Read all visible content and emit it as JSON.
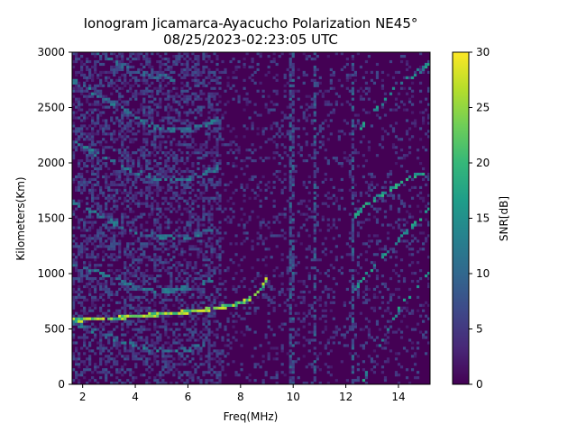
{
  "chart_data": {
    "type": "heatmap",
    "title": [
      "Ionogram Jicamarca-Ayacucho Polarization NE45°",
      "08/25/2023-02:23:05 UTC"
    ],
    "xlabel": "Freq(MHz)",
    "ylabel": "Kilometers(Km)",
    "xlim": [
      1.6,
      15.2
    ],
    "ylim": [
      0,
      3000
    ],
    "xticks": [
      2,
      4,
      6,
      8,
      10,
      12,
      14
    ],
    "yticks": [
      0,
      500,
      1000,
      1500,
      2000,
      2500,
      3000
    ],
    "colormap": "viridis",
    "colorbar": {
      "label": "SNR[dB]",
      "range": [
        0,
        30
      ],
      "ticks": [
        0,
        5,
        10,
        15,
        20,
        25,
        30
      ],
      "colors": [
        "#440154",
        "#482878",
        "#3e4989",
        "#31688e",
        "#26828e",
        "#1f9e89",
        "#35b779",
        "#6ece58",
        "#b5de2b",
        "#fde725"
      ]
    },
    "background_snr_db": 1,
    "traces": [
      {
        "kind": "main_echo",
        "snr_db": 29,
        "points": [
          [
            1.6,
            580
          ],
          [
            3,
            595
          ],
          [
            4.5,
            625
          ],
          [
            6,
            655
          ],
          [
            7,
            685
          ],
          [
            7.5,
            705
          ],
          [
            8,
            735
          ],
          [
            8.5,
            790
          ],
          [
            8.8,
            860
          ],
          [
            9.0,
            960
          ]
        ]
      },
      {
        "kind": "lower_echo",
        "snr_db": 14,
        "points": [
          [
            1.6,
            560
          ],
          [
            2.5,
            480
          ],
          [
            3.5,
            390
          ],
          [
            4.5,
            320
          ],
          [
            5.2,
            300
          ],
          [
            6,
            310
          ],
          [
            7,
            390
          ]
        ]
      },
      {
        "kind": "multi_hop_2",
        "snr_db": 14,
        "points": [
          [
            1.6,
            1100
          ],
          [
            3,
            980
          ],
          [
            4,
            880
          ],
          [
            5,
            840
          ],
          [
            6,
            870
          ],
          [
            7,
            960
          ]
        ]
      },
      {
        "kind": "multi_hop_3",
        "snr_db": 14,
        "points": [
          [
            1.6,
            1650
          ],
          [
            3,
            1480
          ],
          [
            4,
            1380
          ],
          [
            5,
            1330
          ],
          [
            6,
            1330
          ],
          [
            7.2,
            1420
          ]
        ]
      },
      {
        "kind": "multi_hop_4",
        "snr_db": 14,
        "points": [
          [
            1.6,
            2200
          ],
          [
            3,
            2020
          ],
          [
            4,
            1920
          ],
          [
            5,
            1850
          ],
          [
            6,
            1860
          ],
          [
            7.2,
            1960
          ]
        ]
      },
      {
        "kind": "multi_hop_5",
        "snr_db": 14,
        "points": [
          [
            1.6,
            2750
          ],
          [
            3,
            2560
          ],
          [
            4,
            2420
          ],
          [
            5,
            2300
          ],
          [
            6,
            2290
          ],
          [
            7.2,
            2400
          ]
        ]
      },
      {
        "kind": "multi_hop_6",
        "snr_db": 12,
        "points": [
          [
            2.5,
            3000
          ],
          [
            3.5,
            2880
          ],
          [
            4.5,
            2800
          ],
          [
            5.5,
            2760
          ]
        ]
      },
      {
        "kind": "oblique_1",
        "snr_db": 18,
        "points": [
          [
            12.6,
            0
          ],
          [
            13.2,
            300
          ],
          [
            13.8,
            600
          ],
          [
            14.4,
            800
          ],
          [
            15.2,
            1000
          ]
        ]
      },
      {
        "kind": "oblique_2",
        "snr_db": 18,
        "points": [
          [
            12.3,
            850
          ],
          [
            13,
            1050
          ],
          [
            13.7,
            1230
          ],
          [
            14.4,
            1400
          ],
          [
            15.2,
            1600
          ]
        ]
      },
      {
        "kind": "oblique_3",
        "snr_db": 20,
        "points": [
          [
            12.2,
            1480
          ],
          [
            12.8,
            1620
          ],
          [
            13.6,
            1760
          ],
          [
            14.4,
            1860
          ],
          [
            15.2,
            1950
          ]
        ]
      },
      {
        "kind": "oblique_4",
        "snr_db": 18,
        "points": [
          [
            12.5,
            2300
          ],
          [
            13.2,
            2500
          ],
          [
            14,
            2700
          ],
          [
            14.6,
            2800
          ],
          [
            15.2,
            2900
          ]
        ]
      }
    ],
    "interference_bands_mhz": [
      9.9,
      10.0,
      10.8,
      12.3
    ],
    "grid": false,
    "legend": "none"
  }
}
